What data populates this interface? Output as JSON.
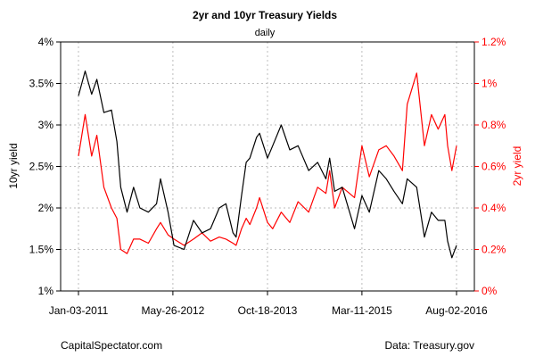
{
  "chart_data": {
    "type": "line",
    "title": "2yr and 10yr Treasury Yields",
    "subtitle": "daily",
    "left_axis": {
      "label": "10yr yield",
      "ylim": [
        0.01,
        0.04
      ],
      "ticks": [
        0.01,
        0.015,
        0.02,
        0.025,
        0.03,
        0.035,
        0.04
      ],
      "tick_labels": [
        "1%",
        "1.5%",
        "2%",
        "2.5%",
        "3%",
        "3.5%",
        "4%"
      ],
      "color": "#000000"
    },
    "right_axis": {
      "label": "2yr yield",
      "ylim": [
        0.0,
        0.012
      ],
      "ticks": [
        0.0,
        0.002,
        0.004,
        0.006,
        0.008,
        0.01,
        0.012
      ],
      "tick_labels": [
        "0%",
        "0.2%",
        "0.4%",
        "0.6%",
        "0.8%",
        "1%",
        "1.2%"
      ],
      "color": "#ff0000"
    },
    "x_axis": {
      "range": [
        "2011-01-03",
        "2016-08-02"
      ],
      "ticks": [
        "2011-01-03",
        "2012-05-26",
        "2013-10-18",
        "2015-03-11",
        "2016-08-02"
      ],
      "tick_labels": [
        "Jan-03-2011",
        "May-26-2012",
        "Oct-18-2013",
        "Mar-11-2015",
        "Aug-02-2016"
      ]
    },
    "grid": true,
    "series": [
      {
        "name": "10yr yield",
        "axis": "left",
        "color": "#000000",
        "x": [
          "2011-01-03",
          "2011-02-08",
          "2011-03-15",
          "2011-04-12",
          "2011-05-20",
          "2011-06-30",
          "2011-07-29",
          "2011-08-19",
          "2011-09-22",
          "2011-10-27",
          "2011-11-30",
          "2012-01-15",
          "2012-02-28",
          "2012-03-20",
          "2012-04-30",
          "2012-06-01",
          "2012-07-25",
          "2012-09-14",
          "2012-10-30",
          "2012-12-15",
          "2013-01-31",
          "2013-03-08",
          "2013-04-15",
          "2013-05-02",
          "2013-05-31",
          "2013-06-25",
          "2013-07-15",
          "2013-08-20",
          "2013-09-05",
          "2013-10-18",
          "2013-11-15",
          "2013-12-31",
          "2014-02-15",
          "2014-04-01",
          "2014-05-28",
          "2014-07-15",
          "2014-08-29",
          "2014-09-18",
          "2014-10-15",
          "2014-11-25",
          "2015-01-30",
          "2015-03-11",
          "2015-04-20",
          "2015-06-10",
          "2015-07-20",
          "2015-08-31",
          "2015-10-15",
          "2015-11-10",
          "2015-12-31",
          "2016-02-11",
          "2016-03-20",
          "2016-04-25",
          "2016-05-31",
          "2016-06-15",
          "2016-07-08",
          "2016-08-02"
        ],
        "y": [
          0.0335,
          0.0365,
          0.0337,
          0.0355,
          0.0315,
          0.0318,
          0.028,
          0.0225,
          0.0195,
          0.0225,
          0.02,
          0.0195,
          0.0205,
          0.0235,
          0.0195,
          0.0155,
          0.015,
          0.0185,
          0.017,
          0.0175,
          0.02,
          0.0205,
          0.017,
          0.0165,
          0.0215,
          0.0255,
          0.026,
          0.0285,
          0.029,
          0.026,
          0.0275,
          0.03,
          0.027,
          0.0275,
          0.0245,
          0.0255,
          0.0235,
          0.026,
          0.022,
          0.0225,
          0.0175,
          0.0215,
          0.0195,
          0.0245,
          0.0235,
          0.022,
          0.0205,
          0.0235,
          0.0225,
          0.0165,
          0.0195,
          0.0185,
          0.0185,
          0.016,
          0.014,
          0.0155
        ]
      },
      {
        "name": "2yr yield",
        "axis": "right",
        "color": "#ff0000",
        "x": [
          "2011-01-03",
          "2011-02-08",
          "2011-03-15",
          "2011-04-12",
          "2011-05-20",
          "2011-06-30",
          "2011-07-29",
          "2011-08-19",
          "2011-09-22",
          "2011-10-27",
          "2011-11-30",
          "2012-01-15",
          "2012-02-28",
          "2012-03-20",
          "2012-04-30",
          "2012-06-01",
          "2012-07-25",
          "2012-09-14",
          "2012-10-30",
          "2012-12-15",
          "2013-01-31",
          "2013-03-08",
          "2013-04-15",
          "2013-05-02",
          "2013-05-31",
          "2013-06-25",
          "2013-07-15",
          "2013-08-20",
          "2013-09-05",
          "2013-10-18",
          "2013-11-15",
          "2013-12-31",
          "2014-02-15",
          "2014-04-01",
          "2014-05-28",
          "2014-07-15",
          "2014-08-29",
          "2014-09-18",
          "2014-10-15",
          "2014-11-25",
          "2015-01-30",
          "2015-03-11",
          "2015-04-20",
          "2015-06-10",
          "2015-07-20",
          "2015-08-31",
          "2015-10-15",
          "2015-11-10",
          "2015-12-31",
          "2016-02-11",
          "2016-03-20",
          "2016-04-25",
          "2016-05-31",
          "2016-06-15",
          "2016-07-08",
          "2016-08-02"
        ],
        "y": [
          0.0065,
          0.0085,
          0.0065,
          0.0075,
          0.005,
          0.004,
          0.0035,
          0.002,
          0.0018,
          0.0025,
          0.0025,
          0.0023,
          0.003,
          0.0033,
          0.0027,
          0.0025,
          0.0022,
          0.0025,
          0.0028,
          0.0024,
          0.0026,
          0.0025,
          0.0023,
          0.0022,
          0.003,
          0.0035,
          0.0032,
          0.004,
          0.0045,
          0.0033,
          0.003,
          0.0038,
          0.0033,
          0.0043,
          0.0038,
          0.005,
          0.0047,
          0.0058,
          0.004,
          0.005,
          0.0045,
          0.007,
          0.0055,
          0.0068,
          0.007,
          0.0065,
          0.0058,
          0.009,
          0.0105,
          0.007,
          0.0085,
          0.0078,
          0.0085,
          0.007,
          0.0058,
          0.007
        ]
      }
    ]
  },
  "footer": {
    "left": "CapitalSpectator.com",
    "right": "Data: Treasury.gov"
  }
}
